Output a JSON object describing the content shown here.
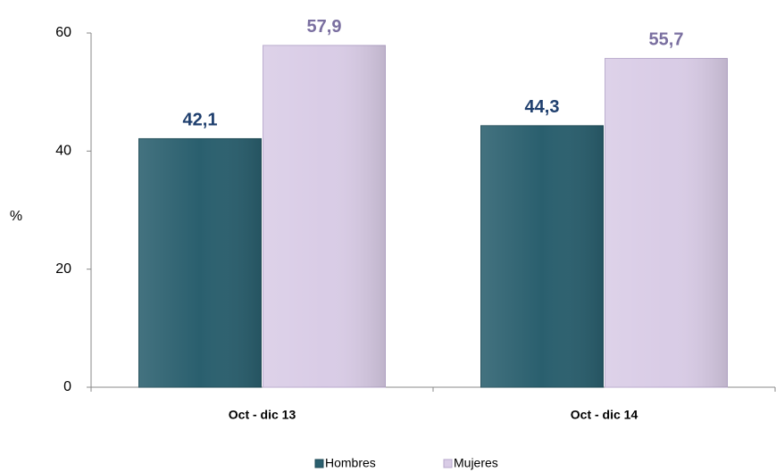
{
  "chart_data": {
    "type": "bar",
    "y_label": "%",
    "categories": [
      "Oct - dic 13",
      "Oct - dic 14"
    ],
    "series": [
      {
        "name": "Hombres",
        "color": "#2a5f6e",
        "label_color": "#1f3f6e",
        "values": [
          42.1,
          44.3
        ],
        "value_labels": [
          "42,1",
          "44,3"
        ]
      },
      {
        "name": "Mujeres",
        "color": "#d9cce6",
        "label_color": "#7a6fa0",
        "values": [
          57.9,
          55.7
        ],
        "value_labels": [
          "57,9",
          "55,7"
        ]
      }
    ],
    "ylim": [
      0,
      60
    ],
    "yticks": [
      0,
      20,
      40,
      60
    ],
    "grid": false
  }
}
